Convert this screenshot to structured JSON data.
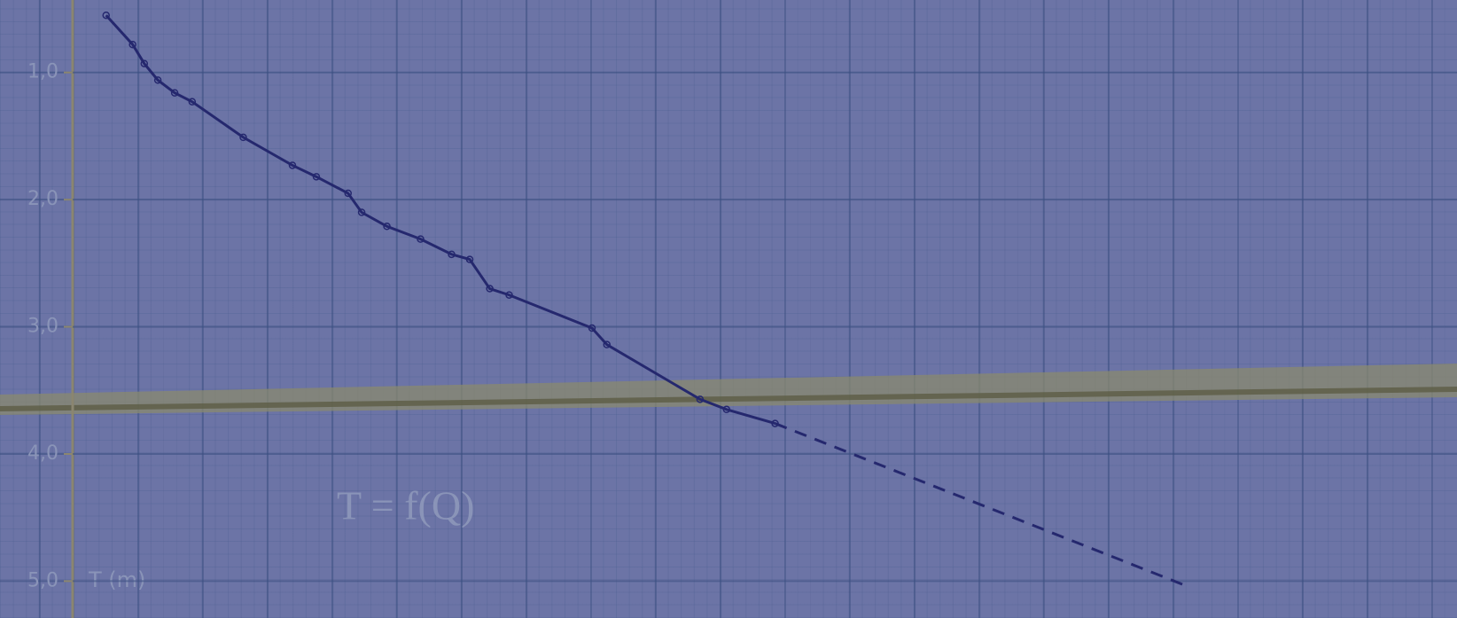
{
  "chart_data": {
    "type": "line",
    "annotation": "T = f(Q)",
    "ylabel": "T (m)",
    "ylim": [
      0.43,
      5.29
    ],
    "invert_y": true,
    "xlim": [
      -1.12,
      21.4
    ],
    "yticks": [
      {
        "value": 1,
        "label": "1,0"
      },
      {
        "value": 2,
        "label": "2,0"
      },
      {
        "value": 3,
        "label": "3,0"
      },
      {
        "value": 4,
        "label": "4,0"
      },
      {
        "value": 5,
        "label": "5,0"
      }
    ],
    "grid": true,
    "series": [
      {
        "color": "#25286e",
        "style": "solid",
        "markers": true,
        "x": [
          0.52,
          0.93,
          1.11,
          1.32,
          1.58,
          1.85,
          2.64,
          3.4,
          3.77,
          4.26,
          4.47,
          4.86,
          5.38,
          5.86,
          6.14,
          6.45,
          6.75,
          8.03,
          8.26,
          9.7,
          10.11,
          10.86
        ],
        "values": [
          0.55,
          0.78,
          0.93,
          1.06,
          1.16,
          1.23,
          1.51,
          1.73,
          1.82,
          1.95,
          2.1,
          2.21,
          2.31,
          2.43,
          2.47,
          2.7,
          2.75,
          3.01,
          3.14,
          3.57,
          3.65,
          3.76
        ]
      },
      {
        "color": "#25286e",
        "style": "dashed",
        "markers": false,
        "x": [
          10.86,
          17.23
        ],
        "values": [
          3.76,
          5.04
        ]
      }
    ]
  }
}
